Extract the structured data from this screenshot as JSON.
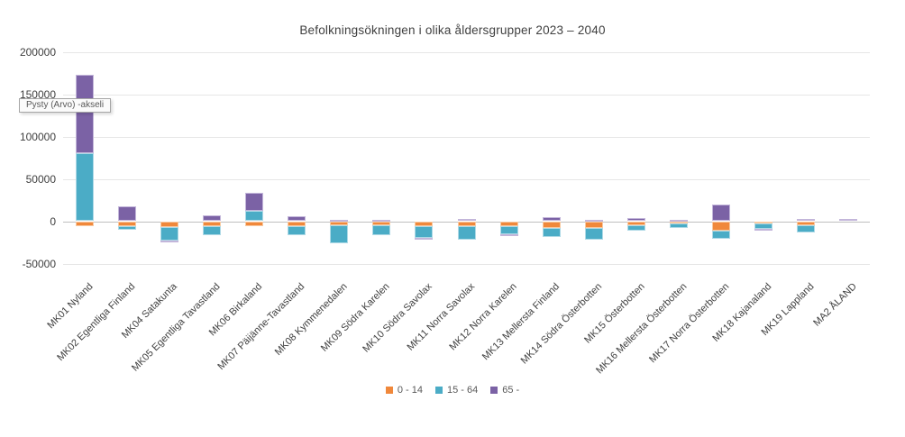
{
  "tooltip": {
    "text": "Pysty (Arvo) -akseli"
  },
  "chart_data": {
    "type": "bar",
    "stacked": true,
    "title": "Befolkningsökningen i olika åldersgrupper 2023 – 2040",
    "grid": true,
    "legend_position": "bottom",
    "categories": [
      "MK01 Nyland",
      "MK02 Egentliga Finland",
      "MK04 Satakunta",
      "MK05 Egentliga Tavastland",
      "MK06 Birkaland",
      "MK07 Päijänne-Tavastland",
      "MK08 Kymmenedalen",
      "MK09 Södra Karelen",
      "MK10 Södra Savolax",
      "MK11 Norra Savolax",
      "MK12 Norra Karelen",
      "MK13 Mellersta Finland",
      "MK14 Södra Österbotten",
      "MK15 Österbotten",
      "MK16 Mellersta Österbotten",
      "MK17 Norra Österbotten",
      "MK18 Kajanaland",
      "MK19 Lappland",
      "MA2 ÅLAND"
    ],
    "series": [
      {
        "name": "0 - 14",
        "color": "#f0883b",
        "stroke": "#f8c9a0",
        "values": [
          -6000,
          -6000,
          -7000,
          -6000,
          -6000,
          -6000,
          -5000,
          -4500,
          -6000,
          -5500,
          -6000,
          -8000,
          -7500,
          -4500,
          -2500,
          -11500,
          -3000,
          -4500,
          0
        ]
      },
      {
        "name": "15 - 64",
        "color": "#4bacc6",
        "stroke": "#aed9e6",
        "values": [
          80000,
          -4000,
          -16000,
          -11000,
          12000,
          -10000,
          -21000,
          -12500,
          -14000,
          -16000,
          -9500,
          -11000,
          -14000,
          -7000,
          -6000,
          -9000,
          -6000,
          -9000,
          0
        ]
      },
      {
        "name": "65 -",
        "color": "#7b62a5",
        "stroke": "#c3b6da",
        "values": [
          93000,
          18000,
          -1000,
          6500,
          22000,
          6000,
          1500,
          1500,
          -2000,
          3000,
          -1500,
          5000,
          1500,
          3500,
          1500,
          19500,
          -2000,
          2500,
          3000
        ]
      }
    ],
    "y_axis": {
      "min": -50000,
      "max": 200000,
      "tick_step": 50000,
      "tick_labels": [
        "200000",
        "150000",
        "100000",
        "50000",
        "0",
        "-50000"
      ]
    }
  }
}
